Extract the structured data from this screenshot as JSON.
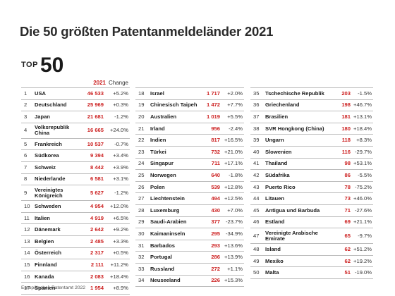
{
  "title": "Die 50 größten Patentanmeldeländer 2021",
  "badge": {
    "top": "TOP",
    "number": "50"
  },
  "header": {
    "year": "2021",
    "change": "Change"
  },
  "columns": [
    [
      {
        "rank": "1",
        "country": "USA",
        "value": "46 533",
        "change": "+5.2%"
      },
      {
        "rank": "2",
        "country": "Deutschland",
        "value": "25 969",
        "change": "+0.3%"
      },
      {
        "rank": "3",
        "country": "Japan",
        "value": "21 681",
        "change": "-1.2%"
      },
      {
        "rank": "4",
        "country": "Volksrepublik China",
        "value": "16 665",
        "change": "+24.0%",
        "tall": true
      },
      {
        "rank": "5",
        "country": "Frankreich",
        "value": "10 537",
        "change": "-0.7%"
      },
      {
        "rank": "6",
        "country": "Südkorea",
        "value": "9 394",
        "change": "+3.4%"
      },
      {
        "rank": "7",
        "country": "Schweiz",
        "value": "8 442",
        "change": "+3.9%"
      },
      {
        "rank": "8",
        "country": "Niederlande",
        "value": "6 581",
        "change": "+3.1%"
      },
      {
        "rank": "9",
        "country": "Vereinigtes Königreich",
        "value": "5 627",
        "change": "-1.2%",
        "tall": true
      },
      {
        "rank": "10",
        "country": "Schweden",
        "value": "4 954",
        "change": "+12.0%"
      },
      {
        "rank": "11",
        "country": "Italien",
        "value": "4 919",
        "change": "+6.5%"
      },
      {
        "rank": "12",
        "country": "Dänemark",
        "value": "2 642",
        "change": "+9.2%"
      },
      {
        "rank": "13",
        "country": "Belgien",
        "value": "2 485",
        "change": "+3.3%"
      },
      {
        "rank": "14",
        "country": "Österreich",
        "value": "2 317",
        "change": "+0.5%"
      },
      {
        "rank": "15",
        "country": "Finnland",
        "value": "2 111",
        "change": "+11.2%"
      },
      {
        "rank": "16",
        "country": "Kanada",
        "value": "2 083",
        "change": "+18.4%"
      },
      {
        "rank": "17",
        "country": "Spanien",
        "value": "1 954",
        "change": "+8.9%"
      }
    ],
    [
      {
        "rank": "18",
        "country": "Israel",
        "value": "1 717",
        "change": "+2.0%"
      },
      {
        "rank": "19",
        "country": "Chinesisch Taipeh",
        "value": "1 472",
        "change": "+7.7%"
      },
      {
        "rank": "20",
        "country": "Australien",
        "value": "1 019",
        "change": "+5.5%"
      },
      {
        "rank": "21",
        "country": "Irland",
        "value": "956",
        "change": "-2.4%"
      },
      {
        "rank": "22",
        "country": "Indien",
        "value": "817",
        "change": "+16.5%"
      },
      {
        "rank": "23",
        "country": "Türkei",
        "value": "732",
        "change": "+21.0%"
      },
      {
        "rank": "24",
        "country": "Singapur",
        "value": "711",
        "change": "+17.1%"
      },
      {
        "rank": "25",
        "country": "Norwegen",
        "value": "640",
        "change": "-1.8%"
      },
      {
        "rank": "26",
        "country": "Polen",
        "value": "539",
        "change": "+12.8%"
      },
      {
        "rank": "27",
        "country": "Liechtenstein",
        "value": "494",
        "change": "+12.5%"
      },
      {
        "rank": "28",
        "country": "Luxemburg",
        "value": "430",
        "change": "+7.0%"
      },
      {
        "rank": "29",
        "country": "Saudi-Arabien",
        "value": "377",
        "change": "-23.7%"
      },
      {
        "rank": "30",
        "country": "Kaimaninseln",
        "value": "295",
        "change": "-34.9%"
      },
      {
        "rank": "31",
        "country": "Barbados",
        "value": "293",
        "change": "+13.6%"
      },
      {
        "rank": "32",
        "country": "Portugal",
        "value": "286",
        "change": "+13.9%"
      },
      {
        "rank": "33",
        "country": "Russland",
        "value": "272",
        "change": "+1.1%"
      },
      {
        "rank": "34",
        "country": "Neuseeland",
        "value": "226",
        "change": "+15.3%"
      }
    ],
    [
      {
        "rank": "35",
        "country": "Tschechische Republik",
        "value": "203",
        "change": "-1.5%"
      },
      {
        "rank": "36",
        "country": "Griechenland",
        "value": "198",
        "change": "+46.7%"
      },
      {
        "rank": "37",
        "country": "Brasilien",
        "value": "181",
        "change": "+13.1%"
      },
      {
        "rank": "38",
        "country": "SVR Hongkong (China)",
        "value": "180",
        "change": "+18.4%"
      },
      {
        "rank": "39",
        "country": "Ungarn",
        "value": "118",
        "change": "+8.3%"
      },
      {
        "rank": "40",
        "country": "Slowenien",
        "value": "116",
        "change": "-29.7%"
      },
      {
        "rank": "41",
        "country": "Thailand",
        "value": "98",
        "change": "+53.1%"
      },
      {
        "rank": "42",
        "country": "Südafrika",
        "value": "86",
        "change": "-5.5%"
      },
      {
        "rank": "43",
        "country": "Puerto Rico",
        "value": "78",
        "change": "-75.2%"
      },
      {
        "rank": "44",
        "country": "Litauen",
        "value": "73",
        "change": "+46.0%"
      },
      {
        "rank": "45",
        "country": "Antigua und Barbuda",
        "value": "71",
        "change": "-27.6%"
      },
      {
        "rank": "46",
        "country": "Estland",
        "value": "69",
        "change": "+21.1%"
      },
      {
        "rank": "47",
        "country": "Vereinigte Arabische Emirate",
        "value": "65",
        "change": "-9.7%",
        "tall": true
      },
      {
        "rank": "48",
        "country": "Island",
        "value": "62",
        "change": "+51.2%"
      },
      {
        "rank": "49",
        "country": "Mexiko",
        "value": "62",
        "change": "+19.2%"
      },
      {
        "rank": "50",
        "country": "Malta",
        "value": "51",
        "change": "-19.0%"
      }
    ]
  ],
  "footer": "Europäisches Patentamt 2022"
}
